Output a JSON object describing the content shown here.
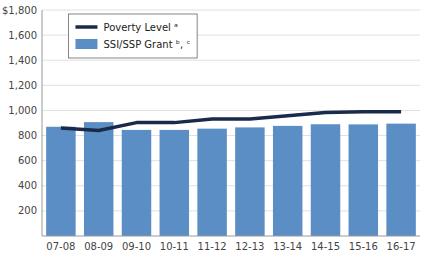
{
  "chart_data": {
    "type": "bar",
    "categories": [
      "07-08",
      "08-09",
      "09-10",
      "10-11",
      "11-12",
      "12-13",
      "13-14",
      "14-15",
      "15-16",
      "16-17"
    ],
    "series": [
      {
        "name": "SSI/SSP Grant ᵇ, ᶜ",
        "type": "bar",
        "color": "#5b8ec4",
        "values": [
          870,
          907,
          845,
          845,
          855,
          865,
          877,
          890,
          889,
          895
        ]
      },
      {
        "name": "Poverty Level ᵃ",
        "type": "line",
        "color": "#1a2a4a",
        "values": [
          861,
          840,
          903,
          903,
          931,
          931,
          958,
          983,
          990,
          990
        ]
      }
    ],
    "ylim": [
      0,
      1800
    ],
    "yticks": [
      200,
      400,
      600,
      800,
      {
        "value": 1000,
        "label": "1,000"
      },
      {
        "value": 1200,
        "label": "1,200"
      },
      {
        "value": 1400,
        "label": "1,400"
      },
      {
        "value": 1600,
        "label": "1,600"
      },
      {
        "value": 1800,
        "label": "$1,800"
      }
    ],
    "grid": true,
    "legend": "upper left"
  }
}
